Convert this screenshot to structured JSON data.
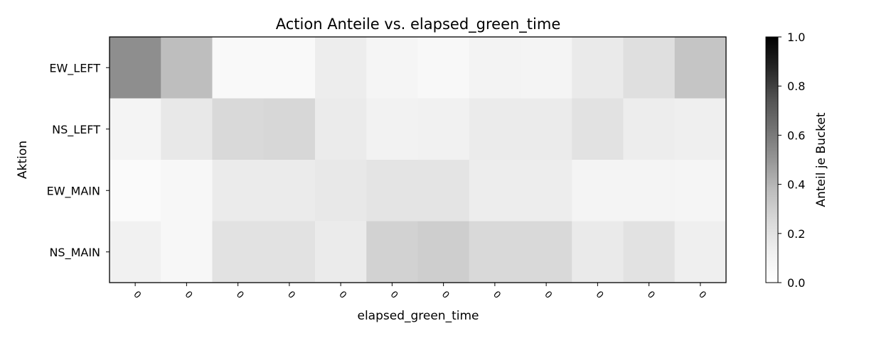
{
  "chart_data": {
    "type": "heatmap",
    "title": "Action Anteile vs. elapsed_green_time",
    "xlabel": "elapsed_green_time",
    "ylabel": "Aktion",
    "colorbar_label": "Anteil je Bucket",
    "x_tick_labels": [
      "0",
      "0",
      "0",
      "0",
      "0",
      "0",
      "0",
      "0",
      "0",
      "0",
      "0",
      "0"
    ],
    "rows": [
      "EW_LEFT",
      "NS_LEFT",
      "EW_MAIN",
      "NS_MAIN"
    ],
    "values": [
      [
        0.53,
        0.37,
        0.05,
        0.05,
        0.14,
        0.08,
        0.06,
        0.1,
        0.09,
        0.16,
        0.22,
        0.34
      ],
      [
        0.09,
        0.17,
        0.25,
        0.26,
        0.15,
        0.11,
        0.12,
        0.15,
        0.15,
        0.2,
        0.14,
        0.13
      ],
      [
        0.04,
        0.07,
        0.15,
        0.15,
        0.17,
        0.19,
        0.19,
        0.14,
        0.14,
        0.09,
        0.09,
        0.08
      ],
      [
        0.12,
        0.07,
        0.2,
        0.2,
        0.15,
        0.28,
        0.3,
        0.25,
        0.25,
        0.16,
        0.2,
        0.13
      ]
    ],
    "colorbar": {
      "min": 0.0,
      "max": 1.0,
      "ticks": [
        "0.0",
        "0.2",
        "0.4",
        "0.6",
        "0.8",
        "1.0"
      ],
      "colormap": "Greys"
    }
  }
}
